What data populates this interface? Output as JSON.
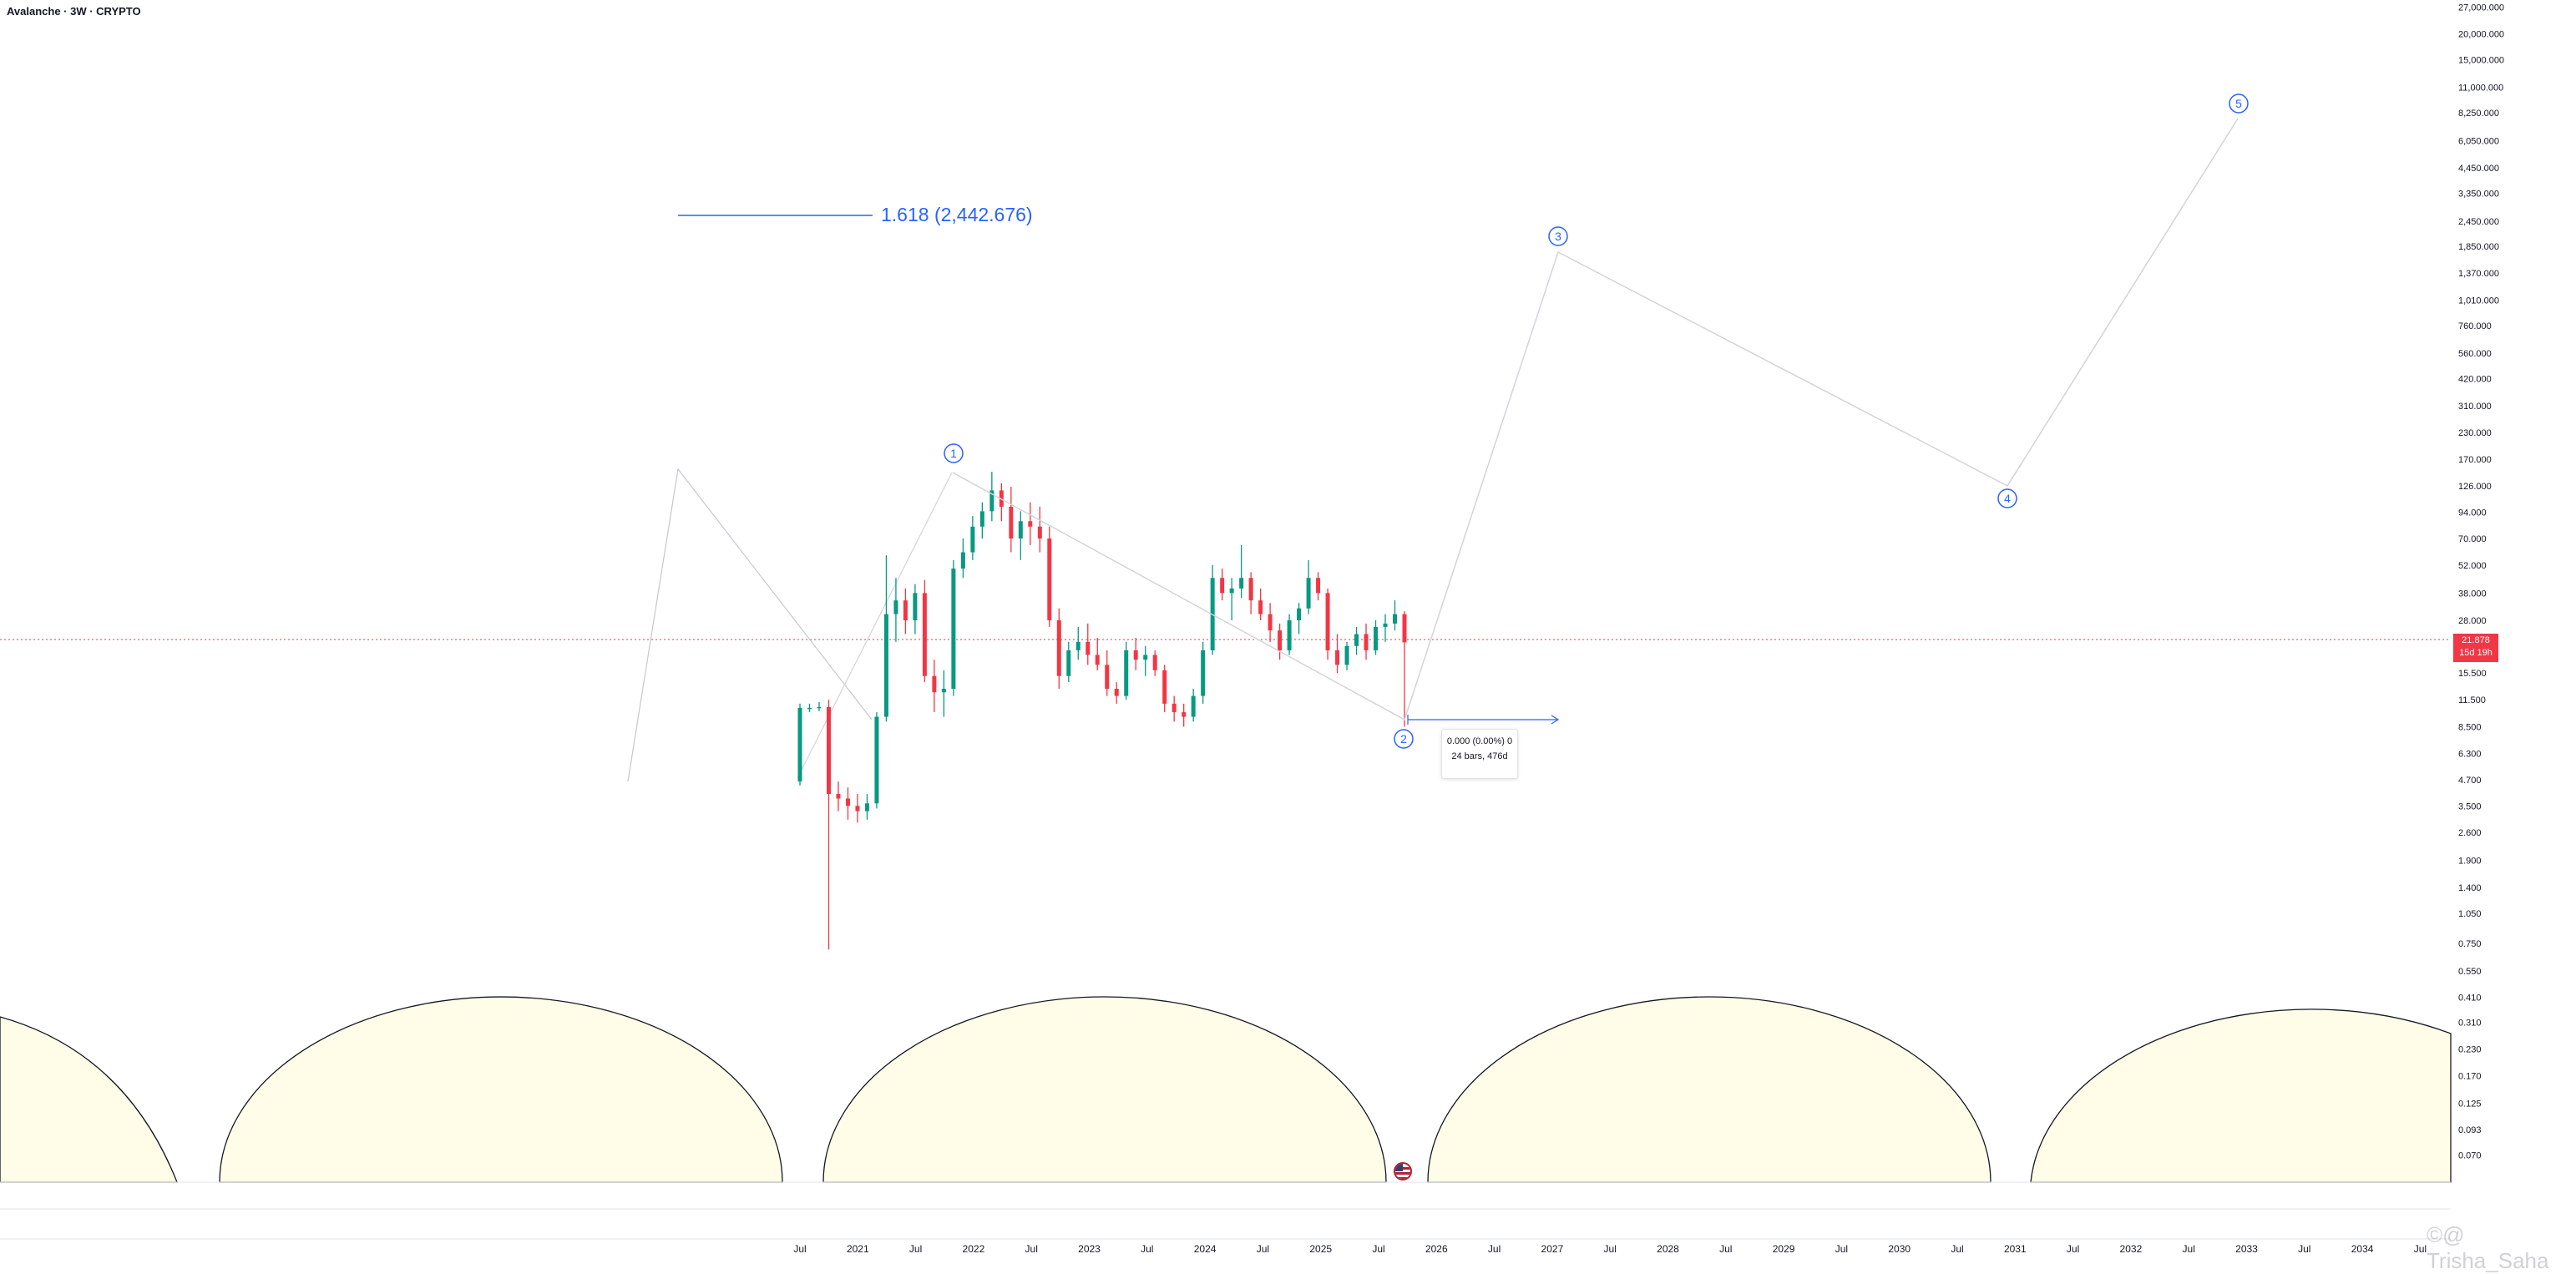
{
  "title": "Avalanche · 3W · CRYPTO",
  "price_badge": {
    "price": "21.878",
    "countdown": "15d 19h",
    "color": "#f23645"
  },
  "fib_label": "1.618 (2,442.676)",
  "tooltip": {
    "line1": "0.000 (0.00%) 0",
    "line2": "24 bars, 476d"
  },
  "watermark": "©@ Trisha_Saha",
  "colors": {
    "up": "#089981",
    "down": "#f23645",
    "drawing": "#2962ff",
    "cycle_fill": "#fffde7"
  },
  "wave_labels": [
    "1",
    "2",
    "3",
    "4",
    "5"
  ],
  "chart_data": {
    "type": "candlestick",
    "title": "Avalanche · 3W · CRYPTO",
    "y_scale": "log",
    "y_ticks": [
      "27,000.000",
      "20,000.000",
      "15,000.000",
      "11,000.000",
      "8,250.000",
      "6,050.000",
      "4,450.000",
      "3,350.000",
      "2,450.000",
      "1,850.000",
      "1,370.000",
      "1,010.000",
      "760.000",
      "560.000",
      "420.000",
      "310.000",
      "230.000",
      "170.000",
      "126.000",
      "94.000",
      "70.000",
      "52.000",
      "38.000",
      "28.000",
      "15.500",
      "11.500",
      "8.500",
      "6.300",
      "4.700",
      "3.500",
      "2.600",
      "1.900",
      "1.400",
      "1.050",
      "0.750",
      "0.550",
      "0.410",
      "0.310",
      "0.230",
      "0.170",
      "0.125",
      "0.093",
      "0.070"
    ],
    "x_ticks": [
      "Jul",
      "2021",
      "Jul",
      "2022",
      "Jul",
      "2023",
      "Jul",
      "2024",
      "Jul",
      "2025",
      "Jul",
      "2026",
      "Jul",
      "2027",
      "Jul",
      "2028",
      "Jul",
      "2029",
      "Jul",
      "2030",
      "Jul",
      "2031",
      "Jul",
      "2032",
      "Jul",
      "2033",
      "Jul",
      "2034",
      "Jul"
    ],
    "x_tick_dates": [
      "2020-07",
      "2021-01",
      "2021-07",
      "2022-01",
      "2022-07",
      "2023-01",
      "2023-07",
      "2024-01",
      "2024-07",
      "2025-01",
      "2025-07",
      "2026-01",
      "2026-07",
      "2027-01",
      "2027-07",
      "2028-01",
      "2028-07",
      "2029-01",
      "2029-07",
      "2030-01",
      "2030-07",
      "2031-01",
      "2031-07",
      "2032-01",
      "2032-07",
      "2033-01",
      "2033-07",
      "2034-01",
      "2034-07"
    ],
    "last_price": 21.878,
    "candles_approx": [
      [
        "2020-09",
        4.6,
        11.0,
        4.4,
        10.5
      ],
      [
        "2020-10",
        10.5,
        11.0,
        10.0,
        10.5
      ],
      [
        "2020-11",
        10.5,
        11.2,
        10.1,
        10.6
      ],
      [
        "2020-12",
        10.6,
        11.5,
        0.7,
        4.0
      ],
      [
        "2021-01",
        4.0,
        4.6,
        3.3,
        3.8
      ],
      [
        "2021-02",
        3.8,
        4.3,
        3.0,
        3.5
      ],
      [
        "2021-02b",
        3.5,
        4.0,
        2.9,
        3.3
      ],
      [
        "2021-03",
        3.3,
        4.0,
        3.0,
        3.6
      ],
      [
        "2021-04",
        3.6,
        10.0,
        3.4,
        9.5
      ],
      [
        "2021-04b",
        9.5,
        58.0,
        9.0,
        30.0
      ],
      [
        "2021-05",
        30.0,
        45.0,
        22.0,
        35.0
      ],
      [
        "2021-05b",
        35.0,
        40.0,
        24.0,
        28.0
      ],
      [
        "2021-06",
        28.0,
        42.0,
        24.0,
        38.0
      ],
      [
        "2021-07",
        38.0,
        44.0,
        14.0,
        15.0
      ],
      [
        "2021-07b",
        15.0,
        18.0,
        10.0,
        12.5
      ],
      [
        "2021-08",
        12.5,
        16.0,
        9.5,
        13.0
      ],
      [
        "2021-08b",
        13.0,
        55.0,
        12.0,
        50.0
      ],
      [
        "2021-09",
        50.0,
        70.0,
        45.0,
        60.0
      ],
      [
        "2021-10",
        60.0,
        90.0,
        55.0,
        80.0
      ],
      [
        "2021-10b",
        80.0,
        105.0,
        70.0,
        95.0
      ],
      [
        "2021-11",
        95.0,
        148.0,
        85.0,
        120.0
      ],
      [
        "2021-12",
        120.0,
        130.0,
        85.0,
        100.0
      ],
      [
        "2022-01",
        100.0,
        125.0,
        60.0,
        70.0
      ],
      [
        "2022-01b",
        70.0,
        95.0,
        55.0,
        85.0
      ],
      [
        "2022-02",
        85.0,
        105.0,
        65.0,
        80.0
      ],
      [
        "2022-03",
        80.0,
        100.0,
        60.0,
        70.0
      ],
      [
        "2022-04",
        70.0,
        80.0,
        26.0,
        28.0
      ],
      [
        "2022-05",
        28.0,
        32.0,
        13.0,
        15.0
      ],
      [
        "2022-05b",
        15.0,
        22.0,
        14.0,
        20.0
      ],
      [
        "2022-06",
        20.0,
        26.0,
        18.0,
        22.0
      ],
      [
        "2022-07",
        22.0,
        27.0,
        17.0,
        19.0
      ],
      [
        "2022-08",
        19.0,
        23.0,
        16.0,
        17.0
      ],
      [
        "2022-09",
        17.0,
        20.0,
        12.0,
        13.0
      ],
      [
        "2022-10",
        13.0,
        14.0,
        11.0,
        12.0
      ],
      [
        "2022-11",
        12.0,
        22.0,
        11.5,
        20.0
      ],
      [
        "2022-12",
        20.0,
        23.0,
        16.0,
        18.0
      ],
      [
        "2023-01",
        18.0,
        21.0,
        15.0,
        19.0
      ],
      [
        "2023-02",
        19.0,
        20.0,
        15.0,
        16.0
      ],
      [
        "2023-03",
        16.0,
        17.0,
        10.0,
        11.0
      ],
      [
        "2023-04",
        11.0,
        12.0,
        9.0,
        10.0
      ],
      [
        "2023-05",
        10.0,
        11.0,
        8.5,
        9.5
      ],
      [
        "2023-06",
        9.5,
        13.0,
        9.0,
        12.0
      ],
      [
        "2023-07",
        12.0,
        22.0,
        11.0,
        20.0
      ],
      [
        "2023-08",
        20.0,
        52.0,
        19.0,
        45.0
      ],
      [
        "2023-09",
        45.0,
        50.0,
        35.0,
        38.0
      ],
      [
        "2023-10",
        38.0,
        45.0,
        28.0,
        40.0
      ],
      [
        "2023-11",
        40.0,
        65.0,
        36.0,
        45.0
      ],
      [
        "2023-12",
        45.0,
        48.0,
        30.0,
        35.0
      ],
      [
        "2024-01",
        35.0,
        40.0,
        28.0,
        30.0
      ],
      [
        "2024-02",
        30.0,
        34.0,
        22.0,
        25.0
      ],
      [
        "2024-03",
        25.0,
        27.0,
        18.0,
        20.0
      ],
      [
        "2024-04",
        20.0,
        30.0,
        19.0,
        28.0
      ],
      [
        "2024-05",
        28.0,
        34.0,
        24.0,
        32.0
      ],
      [
        "2024-06",
        32.0,
        55.0,
        30.0,
        45.0
      ],
      [
        "2024-07",
        45.0,
        48.0,
        35.0,
        38.0
      ],
      [
        "2024-08",
        38.0,
        40.0,
        18.0,
        20.0
      ],
      [
        "2024-09",
        20.0,
        24.0,
        15.5,
        17.0
      ],
      [
        "2024-10",
        17.0,
        22.0,
        16.0,
        21.0
      ],
      [
        "2024-11",
        21.0,
        26.0,
        19.0,
        24.0
      ],
      [
        "2024-12",
        24.0,
        27.0,
        18.0,
        20.0
      ],
      [
        "2025-01",
        20.0,
        28.0,
        19.0,
        26.0
      ],
      [
        "2025-02",
        26.0,
        30.0,
        22.0,
        27.0
      ],
      [
        "2025-03",
        27.0,
        35.0,
        25.0,
        30.0
      ],
      [
        "2025-04",
        30.0,
        31.0,
        8.5,
        21.878
      ]
    ]
  }
}
